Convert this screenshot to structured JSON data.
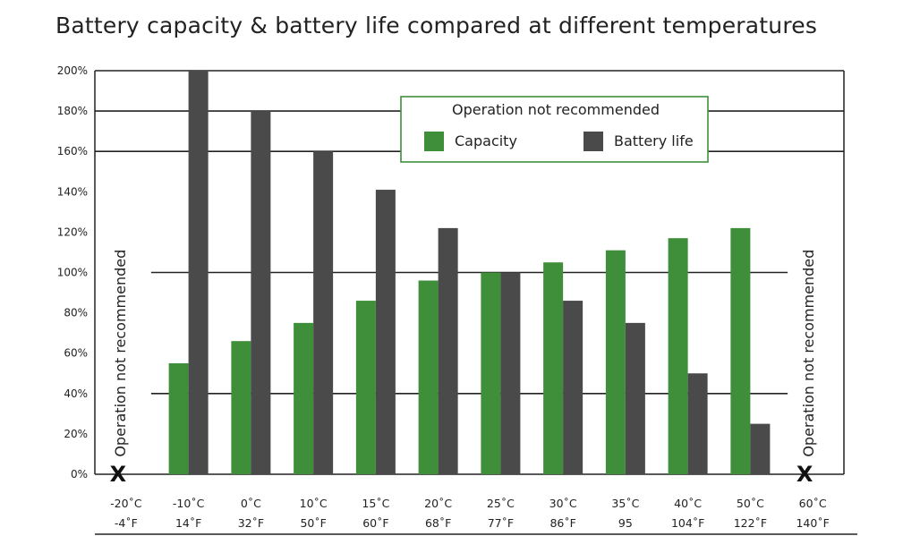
{
  "chart_data": {
    "type": "bar",
    "title": "Battery capacity & battery life compared at different temperatures",
    "xlabel": "",
    "ylabel": "",
    "ylim": [
      0,
      200
    ],
    "ytick_labels": [
      "0%",
      "20%",
      "40%",
      "60%",
      "80%",
      "100%",
      "120%",
      "140%",
      "160%",
      "180%",
      "200%"
    ],
    "categories_c": [
      "-20˚C",
      "-10˚C",
      "0˚C",
      "10˚C",
      "15˚C",
      "20˚C",
      "25˚C",
      "30˚C",
      "35˚C",
      "40˚C",
      "50˚C",
      "60˚C"
    ],
    "categories_f": [
      "-4˚F",
      "14˚F",
      "32˚F",
      "50˚F",
      "60˚F",
      "68˚F",
      "77˚F",
      "86˚F",
      "95",
      "104˚F",
      "122˚F",
      "140˚F"
    ],
    "series": [
      {
        "name": "Capacity",
        "color": "#3f8f3a",
        "values": [
          null,
          55,
          66,
          75,
          86,
          96,
          100,
          105,
          111,
          117,
          122,
          null
        ]
      },
      {
        "name": "Battery life",
        "color": "#4a4a4a",
        "values": [
          null,
          200,
          180,
          160,
          141,
          122,
          100,
          86,
          75,
          50,
          25,
          null
        ]
      }
    ],
    "gridlines": [
      40,
      100,
      160,
      180
    ],
    "legend": {
      "title": "Operation not recommended",
      "position": "top-right"
    },
    "side_annotations": [
      "Operation not recommended",
      "Operation not recommended"
    ],
    "not_recommended_marker": "X",
    "not_recommended_categories": [
      0,
      11
    ]
  }
}
